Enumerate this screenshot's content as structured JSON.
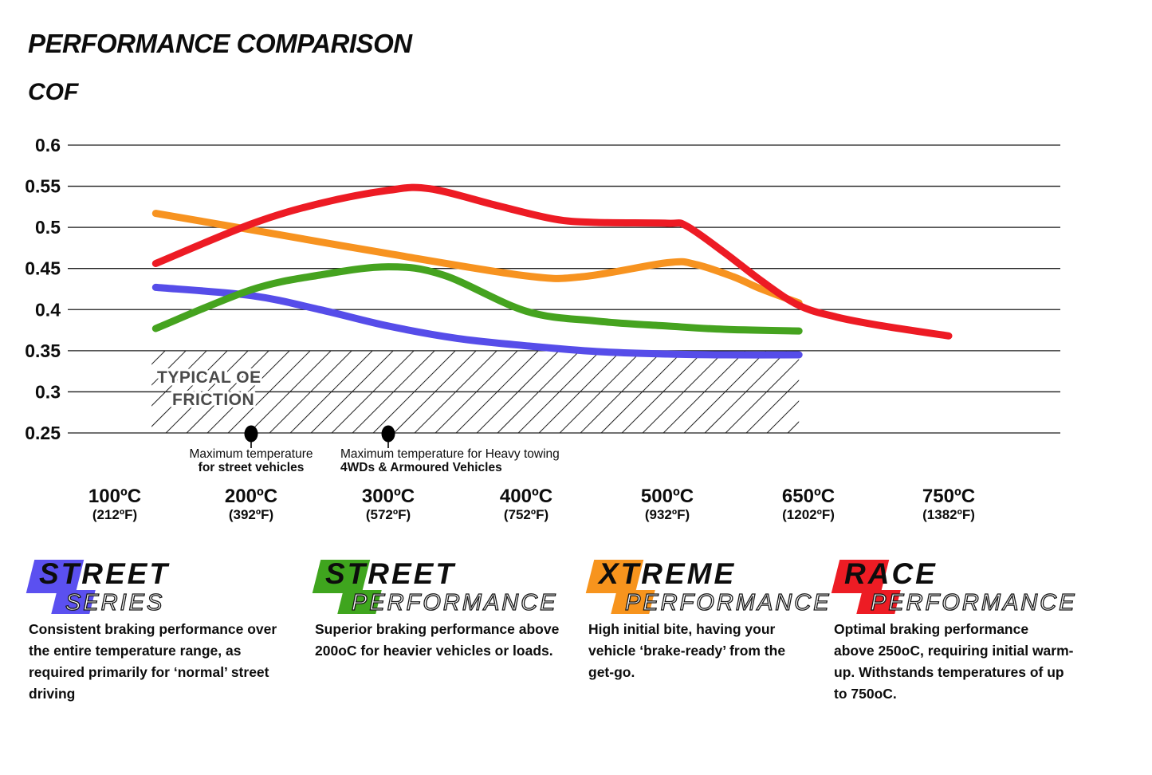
{
  "page": {
    "background": "#ffffff"
  },
  "chart_data": {
    "type": "line",
    "title": "PERFORMANCE COMPARISON",
    "ylabel": "COF",
    "xlabel": "",
    "grid": true,
    "legend_position": "bottom",
    "ylim": [
      0.25,
      0.6
    ],
    "degree_symbol": "º",
    "y_ticks": [
      "0.6",
      "0.55",
      "0.5",
      "0.45",
      "0.4",
      "0.35",
      "0.3",
      "0.25"
    ],
    "x_ticks": [
      {
        "c": "100",
        "f": "212"
      },
      {
        "c": "200",
        "f": "392"
      },
      {
        "c": "300",
        "f": "572"
      },
      {
        "c": "400",
        "f": "752"
      },
      {
        "c": "500",
        "f": "932"
      },
      {
        "c": "650",
        "f": "1202"
      },
      {
        "c": "750",
        "f": "1382"
      }
    ],
    "series": [
      {
        "name": "Street Series",
        "color": "#564de9",
        "points": [
          [
            130,
            0.427
          ],
          [
            200,
            0.417
          ],
          [
            250,
            0.4
          ],
          [
            300,
            0.38
          ],
          [
            350,
            0.365
          ],
          [
            400,
            0.356
          ],
          [
            450,
            0.349
          ],
          [
            500,
            0.346
          ],
          [
            560,
            0.345
          ],
          [
            640,
            0.345
          ]
        ]
      },
      {
        "name": "Street Performance",
        "color": "#45a31f",
        "points": [
          [
            130,
            0.377
          ],
          [
            200,
            0.424
          ],
          [
            250,
            0.442
          ],
          [
            300,
            0.452
          ],
          [
            340,
            0.442
          ],
          [
            400,
            0.398
          ],
          [
            450,
            0.386
          ],
          [
            500,
            0.38
          ],
          [
            560,
            0.376
          ],
          [
            640,
            0.374
          ]
        ]
      },
      {
        "name": "Xtreme Performance",
        "color": "#f79320",
        "points": [
          [
            130,
            0.517
          ],
          [
            200,
            0.497
          ],
          [
            300,
            0.468
          ],
          [
            400,
            0.441
          ],
          [
            440,
            0.44
          ],
          [
            500,
            0.457
          ],
          [
            530,
            0.455
          ],
          [
            570,
            0.44
          ],
          [
            600,
            0.425
          ],
          [
            640,
            0.408
          ]
        ]
      },
      {
        "name": "Race Performance",
        "color": "#ed1b24",
        "points": [
          [
            130,
            0.456
          ],
          [
            200,
            0.504
          ],
          [
            250,
            0.529
          ],
          [
            300,
            0.545
          ],
          [
            330,
            0.547
          ],
          [
            380,
            0.526
          ],
          [
            420,
            0.51
          ],
          [
            450,
            0.506
          ],
          [
            500,
            0.505
          ],
          [
            520,
            0.502
          ],
          [
            560,
            0.47
          ],
          [
            600,
            0.435
          ],
          [
            640,
            0.405
          ],
          [
            670,
            0.391
          ],
          [
            700,
            0.381
          ],
          [
            750,
            0.368
          ]
        ]
      }
    ],
    "oe_region": {
      "label_lines": [
        "TYPICAL OE",
        "FRICTION"
      ],
      "cof_range": [
        0.25,
        0.35
      ],
      "temp_range": [
        127,
        640
      ]
    },
    "markers": [
      {
        "temp": 200,
        "cof": 0.25,
        "align": "center",
        "lines": [
          "Maximum temperature",
          "for street vehicles"
        ]
      },
      {
        "temp": 300,
        "cof": 0.25,
        "align": "left",
        "lines": [
          "Maximum temperature for Heavy towing",
          "4WDs & Armoured Vehicles"
        ]
      }
    ]
  },
  "legend": {
    "items": [
      {
        "id": "street-series",
        "word1": "STREET",
        "word2": "SERIES",
        "color": "#5b50f0",
        "desc_lines": [
          "Consistent braking performance over",
          "the entire temperature range, as",
          "required primarily for ‘normal’ street",
          "driving"
        ]
      },
      {
        "id": "street-performance",
        "word1": "STREET",
        "word2": "PERFORMANCE",
        "color": "#3fa51e",
        "desc_lines": [
          "Superior braking performance above",
          "200oC for heavier vehicles or loads."
        ]
      },
      {
        "id": "xtreme-performance",
        "word1": "XTREME",
        "word2": "PERFORMANCE",
        "color": "#f7941d",
        "desc_lines": [
          "High initial bite, having your",
          "vehicle ‘brake-ready’ from the",
          "get-go."
        ]
      },
      {
        "id": "race-performance",
        "word1": "RACE",
        "word2": "PERFORMANCE",
        "color": "#ed1c24",
        "desc_lines": [
          "Optimal braking performance",
          "above 250oC, requiring initial warm-",
          "up. Withstands temperatures of up",
          "to 750oC."
        ]
      }
    ]
  }
}
